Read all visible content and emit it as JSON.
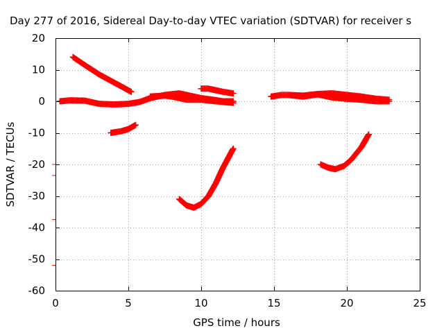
{
  "chart_data": {
    "type": "scatter",
    "title": "Day 277 of 2016, Sidereal Day-to-day VTEC variation (SDTVAR) for receiver s",
    "xlabel": "GPS time / hours",
    "ylabel": "SDTVAR / TECUs",
    "xlim": [
      0,
      25
    ],
    "ylim": [
      -60,
      20
    ],
    "xticks": [
      0,
      5,
      10,
      15,
      20,
      25
    ],
    "yticks": [
      20,
      10,
      0,
      -10,
      -20,
      -30,
      -40,
      -50,
      -60
    ],
    "grid": true,
    "marker": "plus",
    "color": "#ff0000",
    "series": [
      {
        "x": [
          1.2,
          2.0,
          3.0,
          4.0,
          4.6,
          5.2
        ],
        "y": [
          14,
          11.5,
          8.5,
          6,
          4.5,
          3
        ]
      },
      {
        "x": [
          0.3,
          1.0,
          2.0,
          3.0,
          4.0,
          5.0,
          5.8,
          6.5,
          7.5,
          8.5,
          9.2,
          10.0,
          10.8,
          11.5,
          12.2
        ],
        "y": [
          0,
          0.3,
          0.2,
          -0.8,
          -1,
          -0.8,
          -0.2,
          1,
          2,
          2.5,
          1.8,
          1,
          0.5,
          0,
          0
        ]
      },
      {
        "x": [
          6.5,
          7.5,
          8.0,
          9.0,
          10.0,
          11.0,
          12.2
        ],
        "y": [
          1.5,
          1.8,
          1.5,
          0.5,
          0.5,
          0,
          -0.5
        ]
      },
      {
        "x": [
          10.0,
          10.5,
          11.0,
          11.5,
          12.2
        ],
        "y": [
          4,
          4,
          3.5,
          3,
          2.5
        ]
      },
      {
        "x": [
          3.8,
          4.5,
          5.0,
          5.5
        ],
        "y": [
          -10,
          -9.5,
          -8.8,
          -7.5
        ]
      },
      {
        "x": [
          8.5,
          9.0,
          9.5,
          10.0,
          10.5,
          11.0,
          11.5,
          12.2
        ],
        "y": [
          -31,
          -33,
          -33.7,
          -32.5,
          -30,
          -26,
          -21,
          -15
        ]
      },
      {
        "x": [
          14.8,
          15.5,
          16.0,
          17.0,
          18.0,
          19.0,
          20.0,
          21.0,
          22.0,
          22.9
        ],
        "y": [
          1.5,
          2,
          2,
          1.8,
          2.3,
          2.5,
          2,
          1.5,
          0.8,
          0.5
        ]
      },
      {
        "x": [
          16.0,
          17.0,
          18.0,
          19.0,
          20.0,
          21.0,
          22.0,
          22.9
        ],
        "y": [
          2,
          1.5,
          2.2,
          1.2,
          0.8,
          0.5,
          0,
          0
        ]
      },
      {
        "x": [
          18.2,
          18.7,
          19.2,
          19.8,
          20.3,
          21.0,
          21.5
        ],
        "y": [
          -20,
          -21,
          -21.5,
          -20.5,
          -18.5,
          -14.5,
          -10.5
        ]
      }
    ],
    "axis_marks": [
      -20,
      -23.5,
      -37.5,
      -52
    ]
  }
}
